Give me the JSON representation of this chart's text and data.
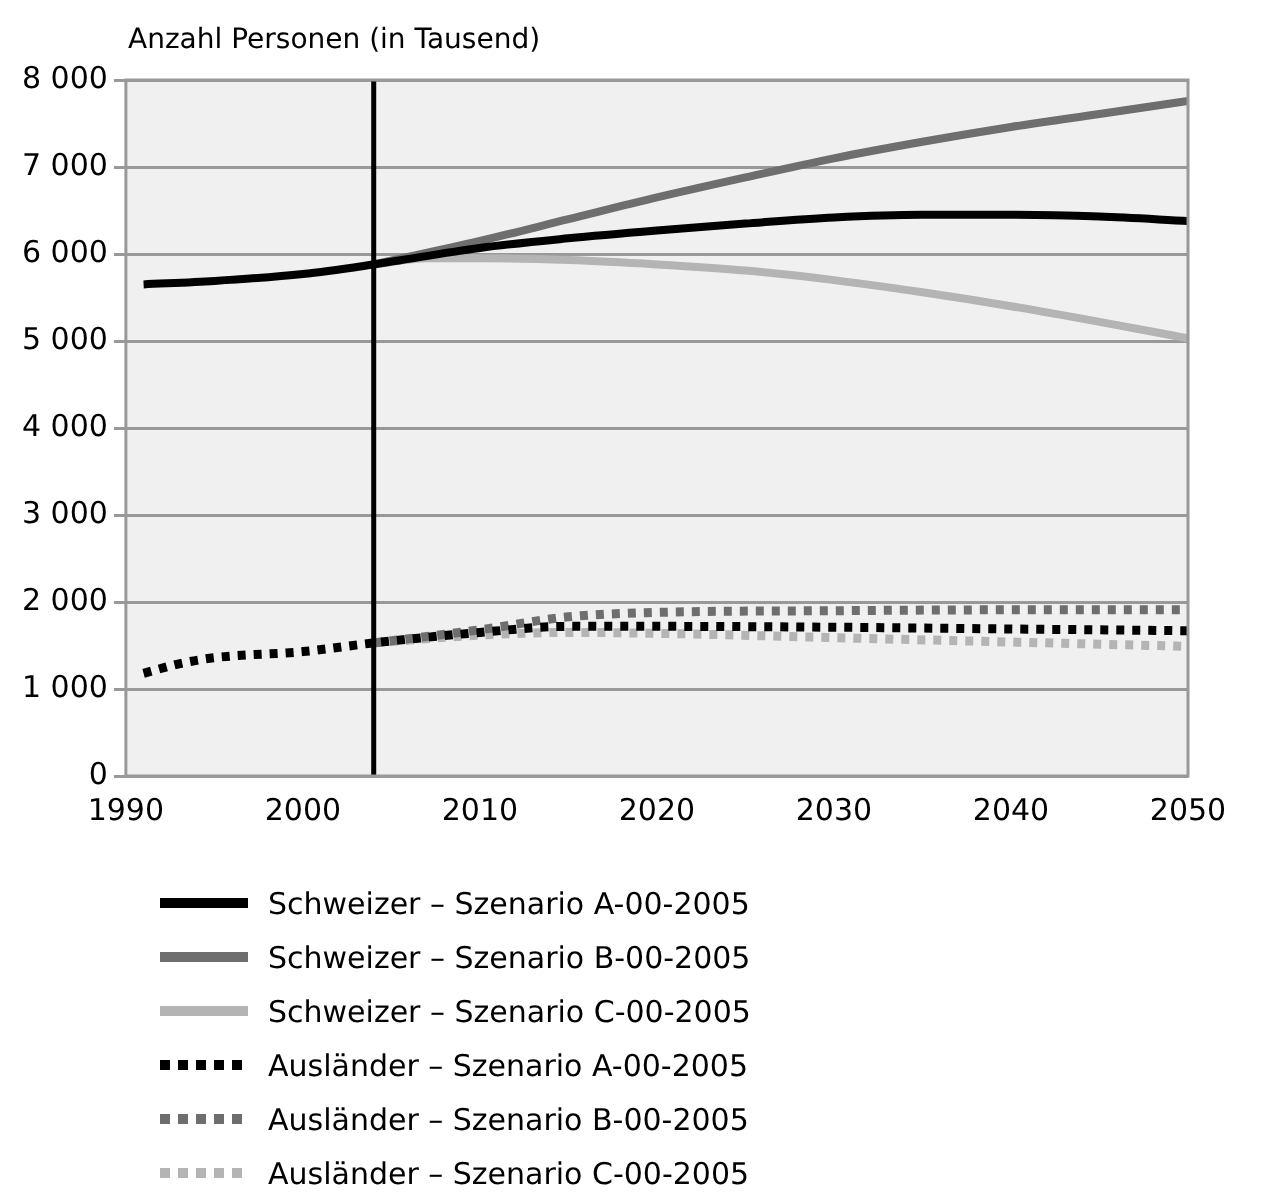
{
  "chart_data": {
    "type": "line",
    "ylabel": "Anzahl Personen (in Tausend)",
    "xlim": [
      1990,
      2050
    ],
    "xticks": [
      1990,
      2000,
      2010,
      2020,
      2030,
      2040,
      2050
    ],
    "ylim": [
      0,
      8000
    ],
    "yticks": [
      {
        "value": 0,
        "label": "0"
      },
      {
        "value": 1000,
        "label": "1 000"
      },
      {
        "value": 2000,
        "label": "2 000"
      },
      {
        "value": 3000,
        "label": "3 000"
      },
      {
        "value": 4000,
        "label": "4 000"
      },
      {
        "value": 5000,
        "label": "5 000"
      },
      {
        "value": 6000,
        "label": "6 000"
      },
      {
        "value": 7000,
        "label": "7 000"
      },
      {
        "value": 8000,
        "label": "8 000"
      }
    ],
    "grid": "y",
    "legend": "bottom",
    "marker": "none",
    "ref_lines": [
      {
        "axis": "x",
        "value": 2004,
        "color": "#000000"
      }
    ],
    "series": [
      {
        "name": "Schweizer – Szenario A-00-2005",
        "color": "#000000",
        "line_style": "solid",
        "x": [
          1991,
          1995,
          2000,
          2004,
          2010,
          2015,
          2020,
          2025,
          2030,
          2035,
          2040,
          2045,
          2050
        ],
        "values": [
          5650,
          5690,
          5770,
          5880,
          6070,
          6180,
          6270,
          6350,
          6420,
          6450,
          6450,
          6430,
          6380
        ]
      },
      {
        "name": "Schweizer – Szenario B-00-2005",
        "color": "#6e6e6e",
        "line_style": "solid",
        "x": [
          2004,
          2010,
          2015,
          2020,
          2025,
          2030,
          2035,
          2040,
          2045,
          2050
        ],
        "values": [
          5880,
          6150,
          6400,
          6650,
          6880,
          7100,
          7290,
          7460,
          7610,
          7760
        ]
      },
      {
        "name": "Schweizer – Szenario C-00-2005",
        "color": "#b4b4b4",
        "line_style": "solid",
        "x": [
          2004,
          2007,
          2010,
          2015,
          2020,
          2025,
          2030,
          2035,
          2040,
          2045,
          2050
        ],
        "values": [
          5880,
          5950,
          5950,
          5930,
          5880,
          5810,
          5700,
          5560,
          5400,
          5220,
          5030
        ]
      },
      {
        "name": "Ausländer – Szenario A-00-2005",
        "color": "#000000",
        "line_style": "dotted",
        "x": [
          1991,
          1993,
          1995,
          2000,
          2004,
          2010,
          2015,
          2020,
          2030,
          2040,
          2050
        ],
        "values": [
          1180,
          1290,
          1360,
          1430,
          1530,
          1650,
          1720,
          1720,
          1710,
          1690,
          1670
        ]
      },
      {
        "name": "Ausländer – Szenario B-00-2005",
        "color": "#6e6e6e",
        "line_style": "dotted",
        "x": [
          2004,
          2010,
          2015,
          2020,
          2030,
          2040,
          2050
        ],
        "values": [
          1530,
          1680,
          1830,
          1880,
          1900,
          1910,
          1910
        ]
      },
      {
        "name": "Ausländer – Szenario C-00-2005",
        "color": "#b4b4b4",
        "line_style": "dotted",
        "x": [
          2004,
          2010,
          2015,
          2020,
          2030,
          2040,
          2050
        ],
        "values": [
          1530,
          1620,
          1650,
          1640,
          1590,
          1540,
          1490
        ]
      }
    ]
  }
}
